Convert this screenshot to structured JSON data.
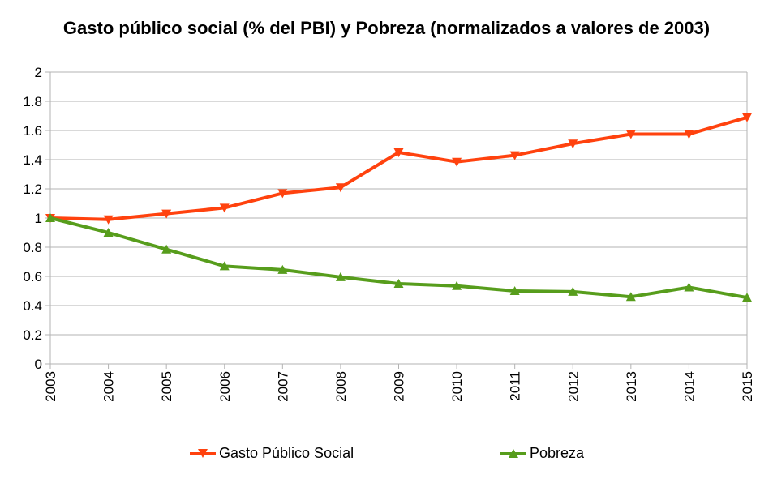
{
  "chart_data": {
    "type": "line",
    "title": "Gasto público social (% del PBI) y Pobreza (normalizados a valores de 2003)",
    "xlabel": "",
    "ylabel": "",
    "categories": [
      "2003",
      "2004",
      "2005",
      "2006",
      "2007",
      "2008",
      "2009",
      "2010",
      "2011",
      "2012",
      "2013",
      "2014",
      "2015"
    ],
    "ylim": [
      0,
      2
    ],
    "yticks": [
      "0",
      "0.2",
      "0.4",
      "0.6",
      "0.8",
      "1",
      "1.2",
      "1.4",
      "1.6",
      "1.8",
      "2"
    ],
    "grid": true,
    "legend_position": "bottom",
    "series": [
      {
        "name": "Gasto Público Social",
        "color": "#ff420e",
        "marker": "triangle-down",
        "values": [
          1.0,
          0.99,
          1.03,
          1.07,
          1.17,
          1.21,
          1.45,
          1.385,
          1.43,
          1.51,
          1.575,
          1.575,
          1.69
        ]
      },
      {
        "name": "Pobreza",
        "color": "#579d1c",
        "marker": "triangle-up",
        "values": [
          1.0,
          0.9,
          0.785,
          0.67,
          0.645,
          0.595,
          0.55,
          0.535,
          0.5,
          0.495,
          0.46,
          0.525,
          0.455
        ]
      }
    ]
  }
}
